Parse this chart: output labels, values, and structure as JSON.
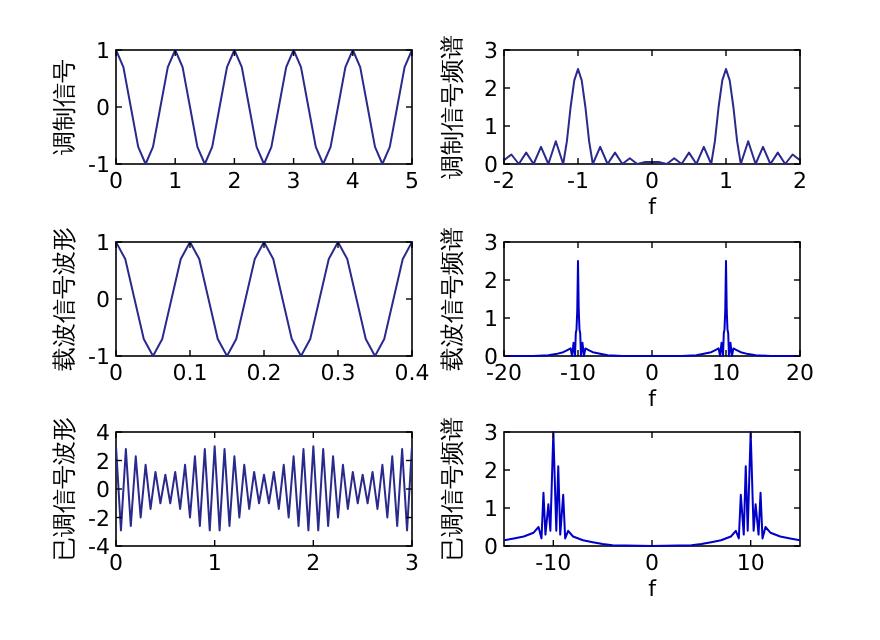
{
  "chart_data": [
    {
      "type": "line",
      "ylabel": "调制信号",
      "xlim": [
        0,
        5
      ],
      "ylim": [
        -1,
        1
      ],
      "xticks": [
        0,
        1,
        2,
        3,
        4,
        5
      ],
      "yticks": [
        -1,
        0,
        1
      ],
      "series": [
        {
          "color": "#2a2a8c",
          "x": [
            0,
            0.125,
            0.25,
            0.375,
            0.5,
            0.625,
            0.75,
            0.875,
            1,
            1.125,
            1.25,
            1.375,
            1.5,
            1.625,
            1.75,
            1.875,
            2,
            2.125,
            2.25,
            2.375,
            2.5,
            2.625,
            2.75,
            2.875,
            3,
            3.125,
            3.25,
            3.375,
            3.5,
            3.625,
            3.75,
            3.875,
            4,
            4.125,
            4.25,
            4.375,
            4.5,
            4.625,
            4.75,
            4.875,
            5
          ],
          "values": [
            1,
            0.7,
            0,
            -0.7,
            -1,
            -0.7,
            0,
            0.7,
            1,
            0.7,
            0,
            -0.7,
            -1,
            -0.7,
            0,
            0.7,
            1,
            0.7,
            0,
            -0.7,
            -1,
            -0.7,
            0,
            0.7,
            1,
            0.7,
            0,
            -0.7,
            -1,
            -0.7,
            0,
            0.7,
            1,
            0.7,
            0,
            -0.7,
            -1,
            -0.7,
            0,
            0.7,
            1
          ]
        }
      ]
    },
    {
      "type": "line",
      "ylabel": "调制信号频谱",
      "xlabel": "f",
      "xlim": [
        -2,
        2
      ],
      "ylim": [
        0,
        3
      ],
      "xticks": [
        -2,
        -1,
        0,
        1,
        2
      ],
      "yticks": [
        0,
        1,
        2,
        3
      ],
      "series": [
        {
          "color": "#2a2a8c",
          "x": [
            -2,
            -1.9,
            -1.8,
            -1.7,
            -1.6,
            -1.5,
            -1.4,
            -1.3,
            -1.2,
            -1.15,
            -1.1,
            -1.05,
            -1,
            -0.95,
            -0.9,
            -0.85,
            -0.8,
            -0.7,
            -0.6,
            -0.5,
            -0.4,
            -0.3,
            -0.2,
            -0.1,
            0,
            0.1,
            0.2,
            0.3,
            0.4,
            0.5,
            0.6,
            0.7,
            0.8,
            0.85,
            0.9,
            0.95,
            1,
            1.05,
            1.1,
            1.15,
            1.2,
            1.3,
            1.4,
            1.5,
            1.6,
            1.7,
            1.8,
            1.9,
            2
          ],
          "values": [
            0.1,
            0.25,
            0,
            0.3,
            0,
            0.45,
            0,
            0.6,
            0,
            0.6,
            1.5,
            2.2,
            2.5,
            2.2,
            1.5,
            0.6,
            0,
            0.45,
            0,
            0.3,
            0,
            0.15,
            0,
            0.05,
            0.05,
            0.05,
            0,
            0.15,
            0,
            0.3,
            0,
            0.45,
            0,
            0.6,
            1.5,
            2.2,
            2.5,
            2.2,
            1.5,
            0.6,
            0,
            0.6,
            0,
            0.45,
            0,
            0.3,
            0,
            0.25,
            0.1
          ]
        }
      ]
    },
    {
      "type": "line",
      "ylabel": "载波信号波形",
      "xlim": [
        0,
        0.4
      ],
      "ylim": [
        -1,
        1
      ],
      "xticks": [
        0,
        0.1,
        0.2,
        0.3,
        0.4
      ],
      "yticks": [
        -1,
        0,
        1
      ],
      "series": [
        {
          "color": "#2a2a8c",
          "x": [
            0,
            0.0125,
            0.025,
            0.0375,
            0.05,
            0.0625,
            0.075,
            0.0875,
            0.1,
            0.1125,
            0.125,
            0.1375,
            0.15,
            0.1625,
            0.175,
            0.1875,
            0.2,
            0.2125,
            0.225,
            0.2375,
            0.25,
            0.2625,
            0.275,
            0.2875,
            0.3,
            0.3125,
            0.325,
            0.3375,
            0.35,
            0.3625,
            0.375,
            0.3875,
            0.4
          ],
          "values": [
            1,
            0.7,
            0,
            -0.7,
            -1,
            -0.7,
            0,
            0.7,
            1,
            0.7,
            0,
            -0.7,
            -1,
            -0.7,
            0,
            0.7,
            1,
            0.7,
            0,
            -0.7,
            -1,
            -0.7,
            0,
            0.7,
            1,
            0.7,
            0,
            -0.7,
            -1,
            -0.7,
            0,
            0.7,
            1
          ]
        }
      ]
    },
    {
      "type": "line",
      "ylabel": "载波信号频谱",
      "xlabel": "f",
      "xlim": [
        -20,
        20
      ],
      "ylim": [
        0,
        3
      ],
      "xticks": [
        -20,
        -10,
        0,
        10,
        20
      ],
      "yticks": [
        0,
        1,
        2,
        3
      ],
      "series": [
        {
          "color": "#0000c8",
          "x": [
            -20,
            -16,
            -14,
            -13,
            -12,
            -11.5,
            -11,
            -10.8,
            -10.6,
            -10.4,
            -10.3,
            -10.2,
            -10.1,
            -10,
            -9.9,
            -9.8,
            -9.7,
            -9.6,
            -9.4,
            -9.2,
            -9,
            -8.5,
            -8,
            -6,
            -4,
            0,
            4,
            6,
            8,
            8.5,
            9,
            9.2,
            9.4,
            9.6,
            9.7,
            9.8,
            9.9,
            10,
            10.1,
            10.2,
            10.3,
            10.4,
            10.6,
            10.8,
            11,
            11.5,
            12,
            13,
            14,
            16,
            20
          ],
          "values": [
            0,
            0,
            0.02,
            0.05,
            0.1,
            0.15,
            0.2,
            0,
            0.35,
            0,
            0.6,
            0.7,
            1.2,
            2.5,
            1.2,
            0.7,
            0.6,
            0,
            0.35,
            0,
            0.2,
            0.15,
            0.1,
            0.02,
            0,
            0,
            0,
            0.02,
            0.1,
            0.15,
            0.2,
            0,
            0.35,
            0,
            0.6,
            0.7,
            1.2,
            2.5,
            1.2,
            0.7,
            0.6,
            0,
            0.35,
            0,
            0.2,
            0.15,
            0.1,
            0.05,
            0.02,
            0,
            0
          ]
        }
      ]
    },
    {
      "type": "line",
      "ylabel": "已调信号波形",
      "xlim": [
        0,
        3
      ],
      "ylim": [
        -4,
        4
      ],
      "xticks": [
        0,
        1,
        2,
        3
      ],
      "yticks": [
        -4,
        -2,
        0,
        2,
        4
      ],
      "series": [
        {
          "color": "#2a2a8c",
          "x": [
            0,
            0.05,
            0.1,
            0.15,
            0.2,
            0.25,
            0.3,
            0.35,
            0.4,
            0.45,
            0.5,
            0.55,
            0.6,
            0.65,
            0.7,
            0.75,
            0.8,
            0.85,
            0.9,
            0.95,
            1,
            1.05,
            1.1,
            1.15,
            1.2,
            1.25,
            1.3,
            1.35,
            1.4,
            1.45,
            1.5,
            1.55,
            1.6,
            1.65,
            1.7,
            1.75,
            1.8,
            1.85,
            1.9,
            1.95,
            2,
            2.05,
            2.1,
            2.15,
            2.2,
            2.25,
            2.3,
            2.35,
            2.4,
            2.45,
            2.5,
            2.55,
            2.6,
            2.65,
            2.7,
            2.75,
            2.8,
            2.85,
            2.9,
            2.95,
            3
          ],
          "values": [
            3,
            -2.9,
            2.8,
            -2.6,
            2.3,
            -2,
            1.7,
            -1.4,
            1.2,
            -1,
            1,
            -1,
            1.2,
            -1.4,
            1.7,
            -2,
            2.3,
            -2.6,
            2.8,
            -2.9,
            3,
            -2.9,
            2.8,
            -2.6,
            2.3,
            -2,
            1.7,
            -1.4,
            1.2,
            -1,
            1,
            -1,
            1.2,
            -1.4,
            1.7,
            -2,
            2.3,
            -2.6,
            2.8,
            -2.9,
            3,
            -2.9,
            2.8,
            -2.6,
            2.3,
            -2,
            1.7,
            -1.4,
            1.2,
            -1,
            1,
            -1,
            1.2,
            -1.4,
            1.7,
            -2,
            2.3,
            -2.6,
            2.8,
            -2.9,
            3
          ]
        }
      ]
    },
    {
      "type": "line",
      "ylabel": "已调信号频谱",
      "xlabel": "f",
      "xlim": [
        -15,
        15
      ],
      "ylim": [
        0,
        3
      ],
      "xticks": [
        -10,
        0,
        10
      ],
      "yticks": [
        0,
        1,
        2,
        3
      ],
      "series": [
        {
          "color": "#0000c8",
          "x": [
            -15,
            -14,
            -13,
            -12,
            -11.5,
            -11.2,
            -11,
            -10.8,
            -10.5,
            -10.3,
            -10,
            -9.7,
            -9.5,
            -9.3,
            -9,
            -8.8,
            -8.5,
            -8,
            -7,
            -6,
            -5,
            -4,
            0,
            4,
            5,
            6,
            7,
            8,
            8.5,
            8.8,
            9,
            9.3,
            9.5,
            9.7,
            10,
            10.3,
            10.5,
            10.8,
            11,
            11.2,
            11.5,
            12,
            13,
            14,
            15
          ],
          "values": [
            0.15,
            0.2,
            0.25,
            0.35,
            0.5,
            0.2,
            1.4,
            0.3,
            1.1,
            0.4,
            3,
            0.4,
            2.1,
            0.3,
            1.35,
            0.2,
            0.4,
            0.25,
            0.15,
            0.1,
            0.05,
            0.02,
            0,
            0.02,
            0.05,
            0.1,
            0.15,
            0.25,
            0.4,
            0.2,
            1.35,
            0.3,
            2.1,
            0.4,
            3,
            0.4,
            1.1,
            0.3,
            1.4,
            0.2,
            0.5,
            0.35,
            0.25,
            0.2,
            0.15
          ]
        }
      ]
    }
  ]
}
